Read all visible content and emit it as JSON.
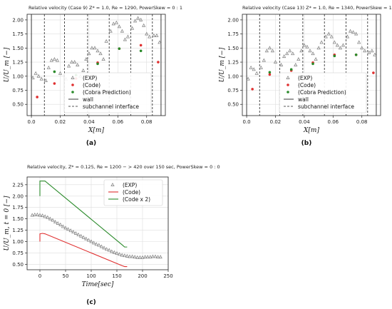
{
  "chart_data": [
    {
      "type": "scatter",
      "panel": "(a)",
      "title": "Relative velocity (Case 9) Z* = 1.0, Re = 1290, PowerSkew = 0 : 1",
      "xlabel": "X[m]",
      "ylabel": "U/U_m [−]",
      "xlim": [
        -0.003,
        0.093
      ],
      "ylim": [
        0.3,
        2.1
      ],
      "xticks": [
        0.0,
        0.02,
        0.04,
        0.06,
        0.08
      ],
      "xtick_labels": [
        "0.0",
        "0.02",
        "0.04",
        "0.06",
        "0.08"
      ],
      "yticks": [
        0.5,
        0.75,
        1.0,
        1.25,
        1.5,
        1.75,
        2.0
      ],
      "ytick_labels": [
        "0.50",
        "0.75",
        "1.00",
        "1.25",
        "1.50",
        "1.75",
        "2.00"
      ],
      "grid": true,
      "legend_position": "lower-center",
      "legend": [
        "(EXP)",
        "(Code)",
        "(Cobra Prediction)",
        "wall",
        "subchannel interface"
      ],
      "walls": [
        0.0,
        0.09
      ],
      "interfaces": [
        0.009,
        0.023,
        0.039,
        0.054,
        0.069,
        0.084
      ],
      "series": [
        {
          "name": "(EXP)",
          "marker": "triangle",
          "color": "#888888",
          "x": [
            0.001,
            0.003,
            0.005,
            0.007,
            0.01,
            0.012,
            0.014,
            0.016,
            0.018,
            0.02,
            0.024,
            0.026,
            0.028,
            0.03,
            0.032,
            0.034,
            0.036,
            0.038,
            0.04,
            0.042,
            0.044,
            0.046,
            0.048,
            0.05,
            0.052,
            0.055,
            0.057,
            0.059,
            0.061,
            0.063,
            0.065,
            0.067,
            0.07,
            0.072,
            0.074,
            0.076,
            0.078,
            0.08,
            0.082,
            0.085,
            0.087,
            0.089
          ],
          "y": [
            0.97,
            1.05,
            1.0,
            0.95,
            0.92,
            1.15,
            1.28,
            1.3,
            1.28,
            1.05,
            0.95,
            1.18,
            1.25,
            1.25,
            1.2,
            1.0,
            1.1,
            1.3,
            1.4,
            1.5,
            1.5,
            1.45,
            1.4,
            1.3,
            1.62,
            1.8,
            1.93,
            1.95,
            1.88,
            1.8,
            1.65,
            1.7,
            1.85,
            1.98,
            2.03,
            2.0,
            1.9,
            1.75,
            1.7,
            1.72,
            1.72,
            1.6
          ]
        },
        {
          "name": "(Code)",
          "marker": "circle",
          "color": "#e03030",
          "x": [
            0.004,
            0.016,
            0.031,
            0.046,
            0.061,
            0.076,
            0.088
          ],
          "y": [
            0.63,
            0.87,
            0.96,
            1.24,
            1.49,
            1.55,
            1.25
          ]
        },
        {
          "name": "(Cobra Prediction)",
          "marker": "circle",
          "color": "#2a8a2a",
          "x": [
            0.016,
            0.031,
            0.046,
            0.061,
            0.076
          ],
          "y": [
            1.08,
            1.02,
            1.22,
            1.49,
            1.45
          ]
        }
      ]
    },
    {
      "type": "scatter",
      "panel": "(b)",
      "title": "Relative velocity (Case 13) Z* = 1.0, Re = 1340, PowerSkew = 1 : 2",
      "xlabel": "X[m]",
      "ylabel": "U/U_m [−]",
      "xlim": [
        -0.003,
        0.093
      ],
      "ylim": [
        0.3,
        2.1
      ],
      "xticks": [
        0.0,
        0.02,
        0.04,
        0.06,
        0.08
      ],
      "xtick_labels": [
        "0.0",
        "0.02",
        "0.04",
        "0.06",
        "0.08"
      ],
      "yticks": [
        0.5,
        0.75,
        1.0,
        1.25,
        1.5,
        1.75,
        2.0
      ],
      "ytick_labels": [
        "0.50",
        "0.75",
        "1.00",
        "1.25",
        "1.50",
        "1.75",
        "2.00"
      ],
      "grid": true,
      "legend_position": "lower-center",
      "legend": [
        "(EXP)",
        "(Code)",
        "(Cobra Prediction)",
        "wall",
        "subchannel interface"
      ],
      "walls": [
        0.0,
        0.09
      ],
      "interfaces": [
        0.009,
        0.023,
        0.039,
        0.054,
        0.069,
        0.084
      ],
      "series": [
        {
          "name": "(EXP)",
          "marker": "triangle",
          "color": "#888888",
          "x": [
            0.001,
            0.003,
            0.005,
            0.007,
            0.01,
            0.012,
            0.014,
            0.016,
            0.018,
            0.02,
            0.024,
            0.026,
            0.028,
            0.03,
            0.032,
            0.034,
            0.036,
            0.038,
            0.04,
            0.042,
            0.044,
            0.046,
            0.048,
            0.05,
            0.052,
            0.055,
            0.057,
            0.059,
            0.061,
            0.063,
            0.065,
            0.067,
            0.07,
            0.072,
            0.074,
            0.076,
            0.078,
            0.08,
            0.082,
            0.085,
            0.087,
            0.089
          ],
          "y": [
            0.95,
            1.15,
            1.12,
            1.05,
            1.15,
            1.28,
            1.45,
            1.5,
            1.45,
            1.25,
            1.2,
            1.35,
            1.4,
            1.45,
            1.4,
            1.2,
            1.3,
            1.45,
            1.55,
            1.52,
            1.45,
            1.4,
            1.3,
            1.5,
            1.6,
            1.7,
            1.75,
            1.7,
            1.6,
            1.55,
            1.5,
            1.55,
            1.7,
            1.8,
            1.78,
            1.75,
            1.6,
            1.5,
            1.45,
            1.42,
            1.45,
            1.38
          ]
        },
        {
          "name": "(Code)",
          "marker": "circle",
          "color": "#e03030",
          "x": [
            0.004,
            0.016,
            0.031,
            0.046,
            0.061,
            0.076,
            0.088
          ],
          "y": [
            0.77,
            1.03,
            1.1,
            1.24,
            1.38,
            1.38,
            1.06
          ]
        },
        {
          "name": "(Cobra Prediction)",
          "marker": "circle",
          "color": "#2a8a2a",
          "x": [
            0.016,
            0.031,
            0.046,
            0.061,
            0.076
          ],
          "y": [
            1.07,
            1.12,
            1.22,
            1.36,
            1.38
          ]
        }
      ]
    },
    {
      "type": "line",
      "panel": "(c)",
      "title": "Relative velocity, Z* = 0.125, Re = 1200 − > 420 over 150 sec, PowerSkew = 0 : 0",
      "xlabel": "Time[sec]",
      "ylabel": "U/U_m, t = 0 [−]",
      "xlim": [
        -25,
        250
      ],
      "ylim": [
        0.38,
        2.42
      ],
      "xticks": [
        0,
        50,
        100,
        150,
        200,
        250
      ],
      "xtick_labels": [
        "0",
        "50",
        "100",
        "150",
        "200",
        "250"
      ],
      "yticks": [
        0.5,
        0.75,
        1.0,
        1.25,
        1.5,
        1.75,
        2.0,
        2.25
      ],
      "ytick_labels": [
        "0.50",
        "0.75",
        "1.00",
        "1.25",
        "1.50",
        "1.75",
        "2.00",
        "2.25"
      ],
      "grid": true,
      "legend_position": "top-right",
      "legend": [
        "(EXP)",
        "(Code)",
        "(Code x 2)"
      ],
      "series": [
        {
          "name": "(EXP)",
          "marker": "triangle",
          "color": "#888888",
          "x": [
            -15,
            -10,
            -5,
            0,
            5,
            10,
            15,
            20,
            25,
            30,
            35,
            40,
            45,
            50,
            55,
            60,
            65,
            70,
            75,
            80,
            85,
            90,
            95,
            100,
            105,
            110,
            115,
            120,
            125,
            130,
            135,
            140,
            145,
            150,
            155,
            160,
            165,
            170,
            175,
            180,
            185,
            190,
            195,
            200,
            205,
            210,
            215,
            220,
            225,
            230,
            235
          ],
          "y": [
            1.58,
            1.59,
            1.59,
            1.58,
            1.57,
            1.55,
            1.53,
            1.5,
            1.47,
            1.43,
            1.4,
            1.37,
            1.33,
            1.3,
            1.27,
            1.24,
            1.21,
            1.18,
            1.15,
            1.12,
            1.09,
            1.06,
            1.03,
            1.0,
            0.97,
            0.94,
            0.92,
            0.89,
            0.86,
            0.83,
            0.81,
            0.78,
            0.76,
            0.74,
            0.72,
            0.7,
            0.69,
            0.68,
            0.67,
            0.67,
            0.66,
            0.65,
            0.65,
            0.65,
            0.66,
            0.66,
            0.66,
            0.67,
            0.67,
            0.66,
            0.66
          ]
        },
        {
          "name": "(Code)",
          "marker": "line",
          "color": "#e03030",
          "x": [
            0,
            0,
            5,
            10,
            160,
            165,
            170
          ],
          "y": [
            1.0,
            1.17,
            1.18,
            1.17,
            0.47,
            0.45,
            0.45
          ]
        },
        {
          "name": "(Code x 2)",
          "marker": "line",
          "color": "#2a8a2a",
          "x": [
            0,
            0,
            5,
            10,
            160,
            165,
            170
          ],
          "y": [
            2.0,
            2.33,
            2.33,
            2.33,
            0.93,
            0.88,
            0.88
          ]
        }
      ]
    }
  ]
}
